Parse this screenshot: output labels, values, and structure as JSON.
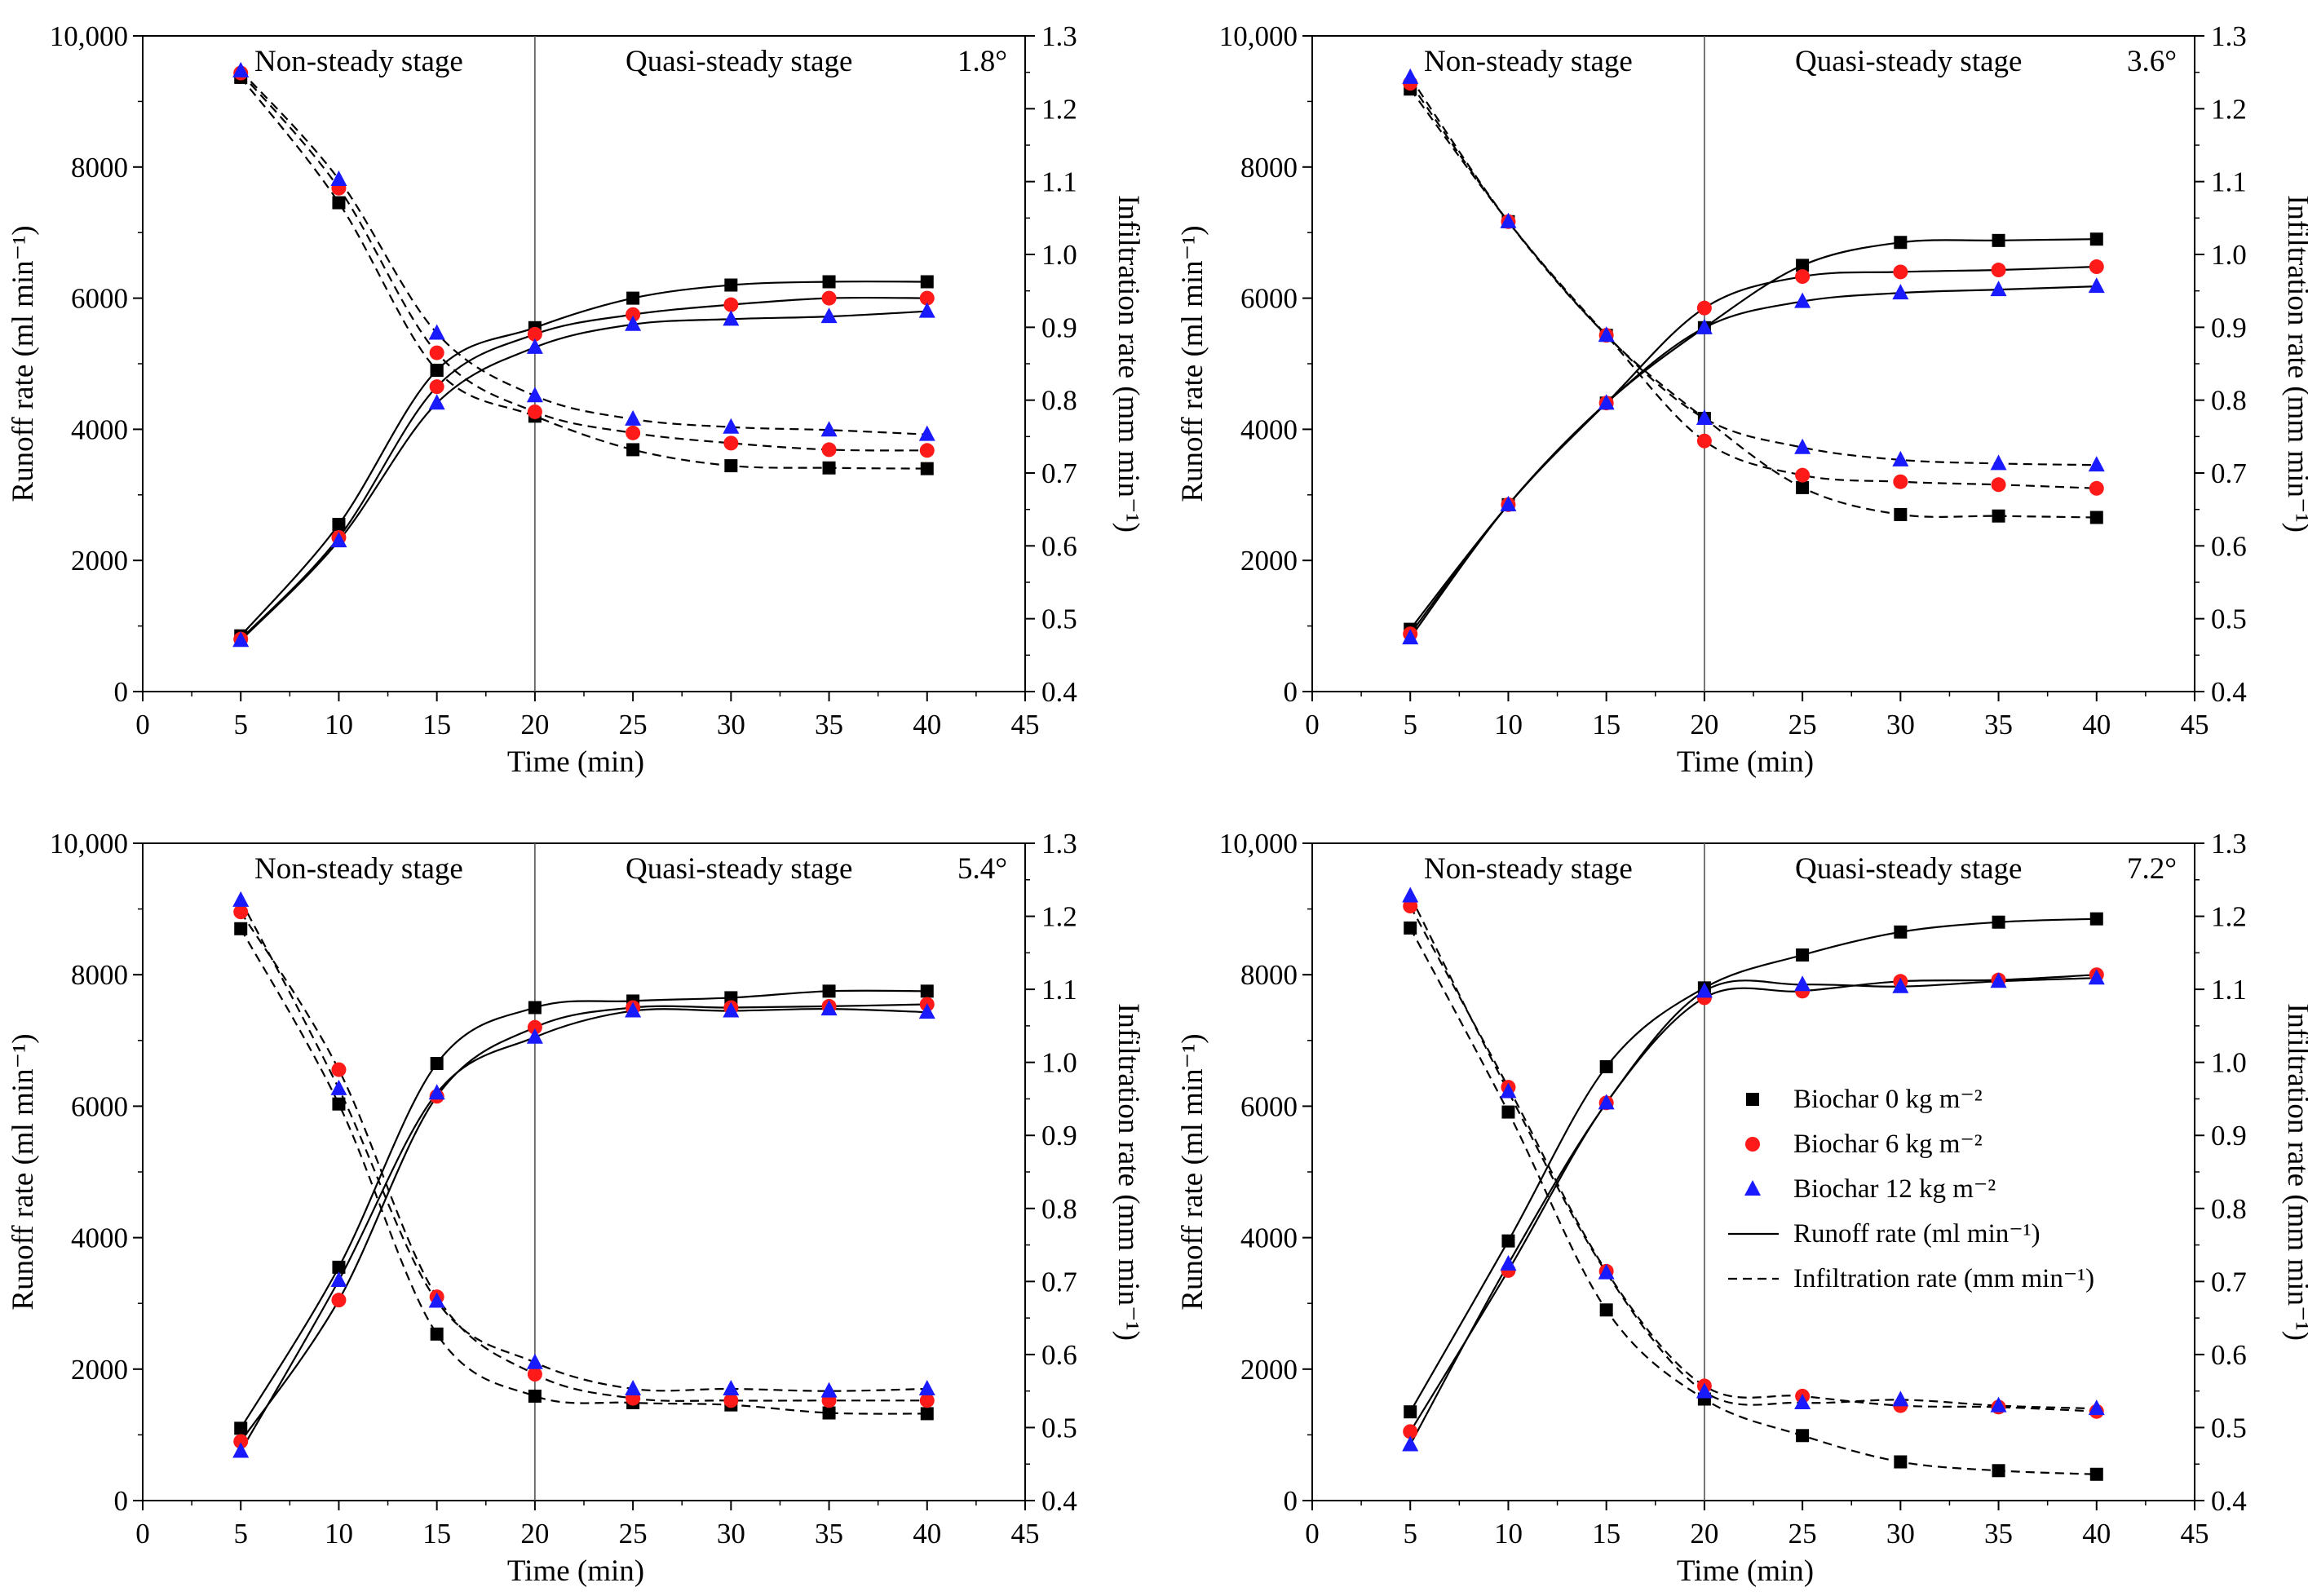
{
  "chart_data": [
    {
      "type": "line",
      "panel_label": "1.8°",
      "x": [
        5,
        10,
        15,
        20,
        25,
        30,
        35,
        40
      ],
      "xlim": [
        0,
        45
      ],
      "xticks": [
        "0",
        "5",
        "10",
        "15",
        "20",
        "25",
        "30",
        "35",
        "40",
        "45"
      ],
      "xlabel": "Time (min)",
      "ylabel_left": "Runoff rate (ml min⁻¹)",
      "ylim_left": [
        0,
        10000
      ],
      "yticks_left": [
        "0",
        "2000",
        "4000",
        "6000",
        "8000",
        "10,000"
      ],
      "ylabel_right": "Infiltration rate (mm min⁻¹)",
      "ylim_right": [
        0.4,
        1.3
      ],
      "yticks_right": [
        "0.4",
        "0.5",
        "0.6",
        "0.7",
        "0.8",
        "0.9",
        "1.0",
        "1.1",
        "1.2",
        "1.3"
      ],
      "stage_divider_x": 20,
      "stage_left_label": "Non-steady stage",
      "stage_right_label": "Quasi-steady stage",
      "series": [
        {
          "name": "Biochar 0 kg m⁻²",
          "metric": "runoff",
          "values": [
            850,
            2550,
            4900,
            5550,
            6000,
            6200,
            6250,
            6250
          ]
        },
        {
          "name": "Biochar 6 kg m⁻²",
          "metric": "runoff",
          "values": [
            800,
            2350,
            4650,
            5450,
            5750,
            5900,
            6000,
            6000
          ]
        },
        {
          "name": "Biochar 12 kg m⁻²",
          "metric": "runoff",
          "values": [
            780,
            2300,
            4400,
            5250,
            5600,
            5680,
            5720,
            5800
          ]
        },
        {
          "name": "Biochar 0 kg m⁻²",
          "metric": "infiltration",
          "values": [
            1.243,
            1.071,
            0.841,
            0.778,
            0.732,
            0.71,
            0.707,
            0.706
          ]
        },
        {
          "name": "Biochar 6 kg m⁻²",
          "metric": "infiltration",
          "values": [
            1.249,
            1.091,
            0.865,
            0.784,
            0.755,
            0.741,
            0.732,
            0.731
          ]
        },
        {
          "name": "Biochar 12 kg m⁻²",
          "metric": "infiltration",
          "values": [
            1.252,
            1.103,
            0.892,
            0.806,
            0.774,
            0.763,
            0.759,
            0.753
          ]
        }
      ]
    },
    {
      "type": "line",
      "panel_label": "3.6°",
      "x": [
        5,
        10,
        15,
        20,
        25,
        30,
        35,
        40
      ],
      "xlim": [
        0,
        45
      ],
      "xticks": [
        "0",
        "5",
        "10",
        "15",
        "20",
        "25",
        "30",
        "35",
        "40",
        "45"
      ],
      "xlabel": "Time (min)",
      "ylabel_left": "Runoff rate (ml min⁻¹)",
      "ylim_left": [
        0,
        10000
      ],
      "yticks_left": [
        "0",
        "2000",
        "4000",
        "6000",
        "8000",
        "10,000"
      ],
      "ylabel_right": "Infiltration rate (mm min⁻¹)",
      "ylim_right": [
        0.4,
        1.3
      ],
      "yticks_right": [
        "0.4",
        "0.5",
        "0.6",
        "0.7",
        "0.8",
        "0.9",
        "1.0",
        "1.1",
        "1.2",
        "1.3"
      ],
      "stage_divider_x": 20,
      "stage_left_label": "Non-steady stage",
      "stage_right_label": "Quasi-steady stage",
      "series": [
        {
          "name": "Biochar 0 kg m⁻²",
          "metric": "runoff",
          "values": [
            950,
            2850,
            4400,
            5550,
            6500,
            6850,
            6880,
            6900
          ]
        },
        {
          "name": "Biochar 6 kg m⁻²",
          "metric": "runoff",
          "values": [
            880,
            2850,
            4400,
            5850,
            6330,
            6400,
            6430,
            6480
          ]
        },
        {
          "name": "Biochar 12 kg m⁻²",
          "metric": "runoff",
          "values": [
            820,
            2850,
            4400,
            5550,
            5950,
            6080,
            6130,
            6180
          ]
        },
        {
          "name": "Biochar 0 kg m⁻²",
          "metric": "infiltration",
          "values": [
            1.227,
            1.045,
            0.889,
            0.775,
            0.68,
            0.643,
            0.641,
            0.639
          ]
        },
        {
          "name": "Biochar 6 kg m⁻²",
          "metric": "infiltration",
          "values": [
            1.235,
            1.045,
            0.889,
            0.744,
            0.697,
            0.688,
            0.684,
            0.679
          ]
        },
        {
          "name": "Biochar 12 kg m⁻²",
          "metric": "infiltration",
          "values": [
            1.243,
            1.045,
            0.889,
            0.775,
            0.735,
            0.718,
            0.713,
            0.711
          ]
        }
      ]
    },
    {
      "type": "line",
      "panel_label": "5.4°",
      "x": [
        5,
        10,
        15,
        20,
        25,
        30,
        35,
        40
      ],
      "xlim": [
        0,
        45
      ],
      "xticks": [
        "0",
        "5",
        "10",
        "15",
        "20",
        "25",
        "30",
        "35",
        "40",
        "45"
      ],
      "xlabel": "Time (min)",
      "ylabel_left": "Runoff rate (ml min⁻¹)",
      "ylim_left": [
        0,
        10000
      ],
      "yticks_left": [
        "0",
        "2000",
        "4000",
        "6000",
        "8000",
        "10,000"
      ],
      "ylabel_right": "Infiltration rate (mm min⁻¹)",
      "ylim_right": [
        0.4,
        1.3
      ],
      "yticks_right": [
        "0.4",
        "0.5",
        "0.6",
        "0.7",
        "0.8",
        "0.9",
        "1.0",
        "1.1",
        "1.2",
        "1.3"
      ],
      "stage_divider_x": 20,
      "stage_left_label": "Non-steady stage",
      "stage_right_label": "Quasi-steady stage",
      "series": [
        {
          "name": "Biochar 0 kg m⁻²",
          "metric": "runoff",
          "values": [
            1100,
            3550,
            6650,
            7500,
            7600,
            7650,
            7750,
            7750
          ]
        },
        {
          "name": "Biochar 6 kg m⁻²",
          "metric": "runoff",
          "values": [
            900,
            3050,
            6150,
            7200,
            7500,
            7500,
            7520,
            7550
          ]
        },
        {
          "name": "Biochar 12 kg m⁻²",
          "metric": "runoff",
          "values": [
            750,
            3350,
            6200,
            7050,
            7450,
            7450,
            7480,
            7430
          ]
        },
        {
          "name": "Biochar 0 kg m⁻²",
          "metric": "infiltration",
          "values": [
            1.183,
            0.943,
            0.628,
            0.543,
            0.534,
            0.531,
            0.52,
            0.519
          ]
        },
        {
          "name": "Biochar 6 kg m⁻²",
          "metric": "infiltration",
          "values": [
            1.206,
            0.99,
            0.679,
            0.573,
            0.54,
            0.537,
            0.537,
            0.537
          ]
        },
        {
          "name": "Biochar 12 kg m⁻²",
          "metric": "infiltration",
          "values": [
            1.222,
            0.964,
            0.673,
            0.589,
            0.553,
            0.553,
            0.55,
            0.553
          ]
        }
      ]
    },
    {
      "type": "line",
      "panel_label": "7.2°",
      "x": [
        5,
        10,
        15,
        20,
        25,
        30,
        35,
        40
      ],
      "xlim": [
        0,
        45
      ],
      "xticks": [
        "0",
        "5",
        "10",
        "15",
        "20",
        "25",
        "30",
        "35",
        "40",
        "45"
      ],
      "xlabel": "Time (min)",
      "ylabel_left": "Runoff rate (ml min⁻¹)",
      "ylim_left": [
        0,
        10000
      ],
      "yticks_left": [
        "0",
        "2000",
        "4000",
        "6000",
        "8000",
        "10,000"
      ],
      "ylabel_right": "Infiltration rate (mm min⁻¹)",
      "ylim_right": [
        0.4,
        1.3
      ],
      "yticks_right": [
        "0.4",
        "0.5",
        "0.6",
        "0.7",
        "0.8",
        "0.9",
        "1.0",
        "1.1",
        "1.2",
        "1.3"
      ],
      "stage_divider_x": 20,
      "stage_left_label": "Non-steady stage",
      "stage_right_label": "Quasi-steady stage",
      "legend": {
        "placement": "right",
        "entries": [
          {
            "marker": "square",
            "color": "#000000",
            "label": "Biochar   0 kg m⁻²"
          },
          {
            "marker": "circle",
            "color": "#ff1a1a",
            "label": "Biochar   6 kg m⁻²"
          },
          {
            "marker": "triangle",
            "color": "#1a1aff",
            "label": "Biochar 12 kg m⁻²"
          },
          {
            "line": "solid",
            "label": "Runoff rate (ml min⁻¹)"
          },
          {
            "line": "dashed",
            "label": "Infiltration rate (mm min⁻¹)"
          }
        ]
      },
      "series": [
        {
          "name": "Biochar 0 kg m⁻²",
          "metric": "runoff",
          "values": [
            1350,
            3950,
            6600,
            7800,
            8300,
            8650,
            8800,
            8850
          ]
        },
        {
          "name": "Biochar 6 kg m⁻²",
          "metric": "runoff",
          "values": [
            1050,
            3500,
            6050,
            7650,
            7750,
            7900,
            7920,
            8000
          ]
        },
        {
          "name": "Biochar 12 kg m⁻²",
          "metric": "runoff",
          "values": [
            850,
            3600,
            6050,
            7750,
            7850,
            7820,
            7900,
            7950
          ]
        },
        {
          "name": "Biochar 0 kg m⁻²",
          "metric": "infiltration",
          "values": [
            1.184,
            0.932,
            0.661,
            0.539,
            0.489,
            0.453,
            0.441,
            0.436
          ]
        },
        {
          "name": "Biochar 6 kg m⁻²",
          "metric": "infiltration",
          "values": [
            1.214,
            0.966,
            0.714,
            0.557,
            0.543,
            0.53,
            0.528,
            0.522
          ]
        },
        {
          "name": "Biochar 12 kg m⁻²",
          "metric": "infiltration",
          "values": [
            1.228,
            0.96,
            0.712,
            0.549,
            0.534,
            0.538,
            0.53,
            0.526
          ]
        }
      ]
    }
  ],
  "colors": {
    "biochar_0": "#000000",
    "biochar_6": "#ff1a1a",
    "biochar_12": "#1a1aff"
  }
}
